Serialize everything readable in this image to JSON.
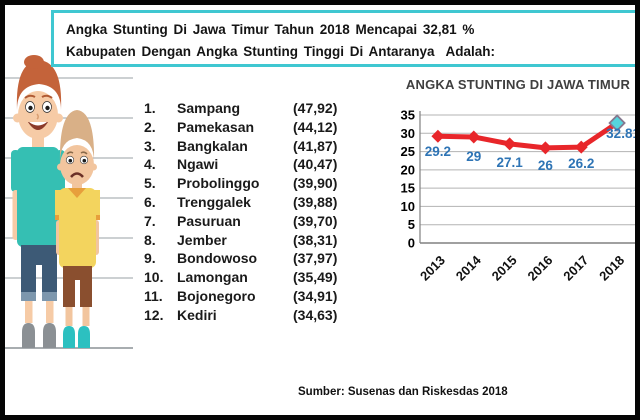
{
  "title_box": {
    "line1": "Angka Stunting Di Jawa Timur Tahun 2018 Mencapai 32,81 %",
    "line2": "Kabupaten Dengan Angka Stunting Tinggi Di Antaranya  Adalah:"
  },
  "list": {
    "items": [
      {
        "rank": "1.",
        "name": "Sampang",
        "value": "(47,92)"
      },
      {
        "rank": "2.",
        "name": "Pamekasan",
        "value": "(44,12)"
      },
      {
        "rank": "3.",
        "name": "Bangkalan",
        "value": "(41,87)"
      },
      {
        "rank": "4.",
        "name": "Ngawi",
        "value": "(40,47)"
      },
      {
        "rank": "5.",
        "name": "Probolinggo",
        "value": "(39,90)"
      },
      {
        "rank": "6.",
        "name": "Trenggalek",
        "value": "(39,88)"
      },
      {
        "rank": "7.",
        "name": "Pasuruan",
        "value": "(39,70)"
      },
      {
        "rank": "8.",
        "name": "Jember",
        "value": "(38,31)"
      },
      {
        "rank": "9.",
        "name": "Bondowoso",
        "value": "(37,97)"
      },
      {
        "rank": "10.",
        "name": "Lamongan",
        "value": "(35,49)"
      },
      {
        "rank": "11.",
        "name": "Bojonegoro",
        "value": "(34,91)"
      },
      {
        "rank": "12.",
        "name": "Kediri",
        "value": "(34,63)"
      }
    ]
  },
  "chart_data": {
    "type": "line",
    "title": "ANGKA STUNTING DI JAWA TIMUR",
    "categories": [
      "2013",
      "2014",
      "2015",
      "2016",
      "2017",
      "2018"
    ],
    "values": [
      29.2,
      29,
      27.1,
      26,
      26.2,
      32.81
    ],
    "labels": [
      "29.2",
      "29",
      "27.1",
      "26",
      "26.2",
      "32.81"
    ],
    "xlabel": "",
    "ylabel": "",
    "ylim": [
      0,
      35
    ],
    "ytick_step": 5,
    "grid": true,
    "legend": false,
    "colors": {
      "line": "#e8262a",
      "marker": "#e8262a",
      "last_marker_fill": "#55d4dd",
      "last_marker_stroke": "#85788f",
      "data_label": "#2e74b5",
      "grid": "#b3b3b3",
      "axis": "#808080",
      "tick_label": "#000000",
      "title": "#3f3f3f"
    }
  },
  "source_text": "Sumber: Susenas dan Riskesdas 2018",
  "colors": {
    "box_border": "#3fc7d1"
  }
}
